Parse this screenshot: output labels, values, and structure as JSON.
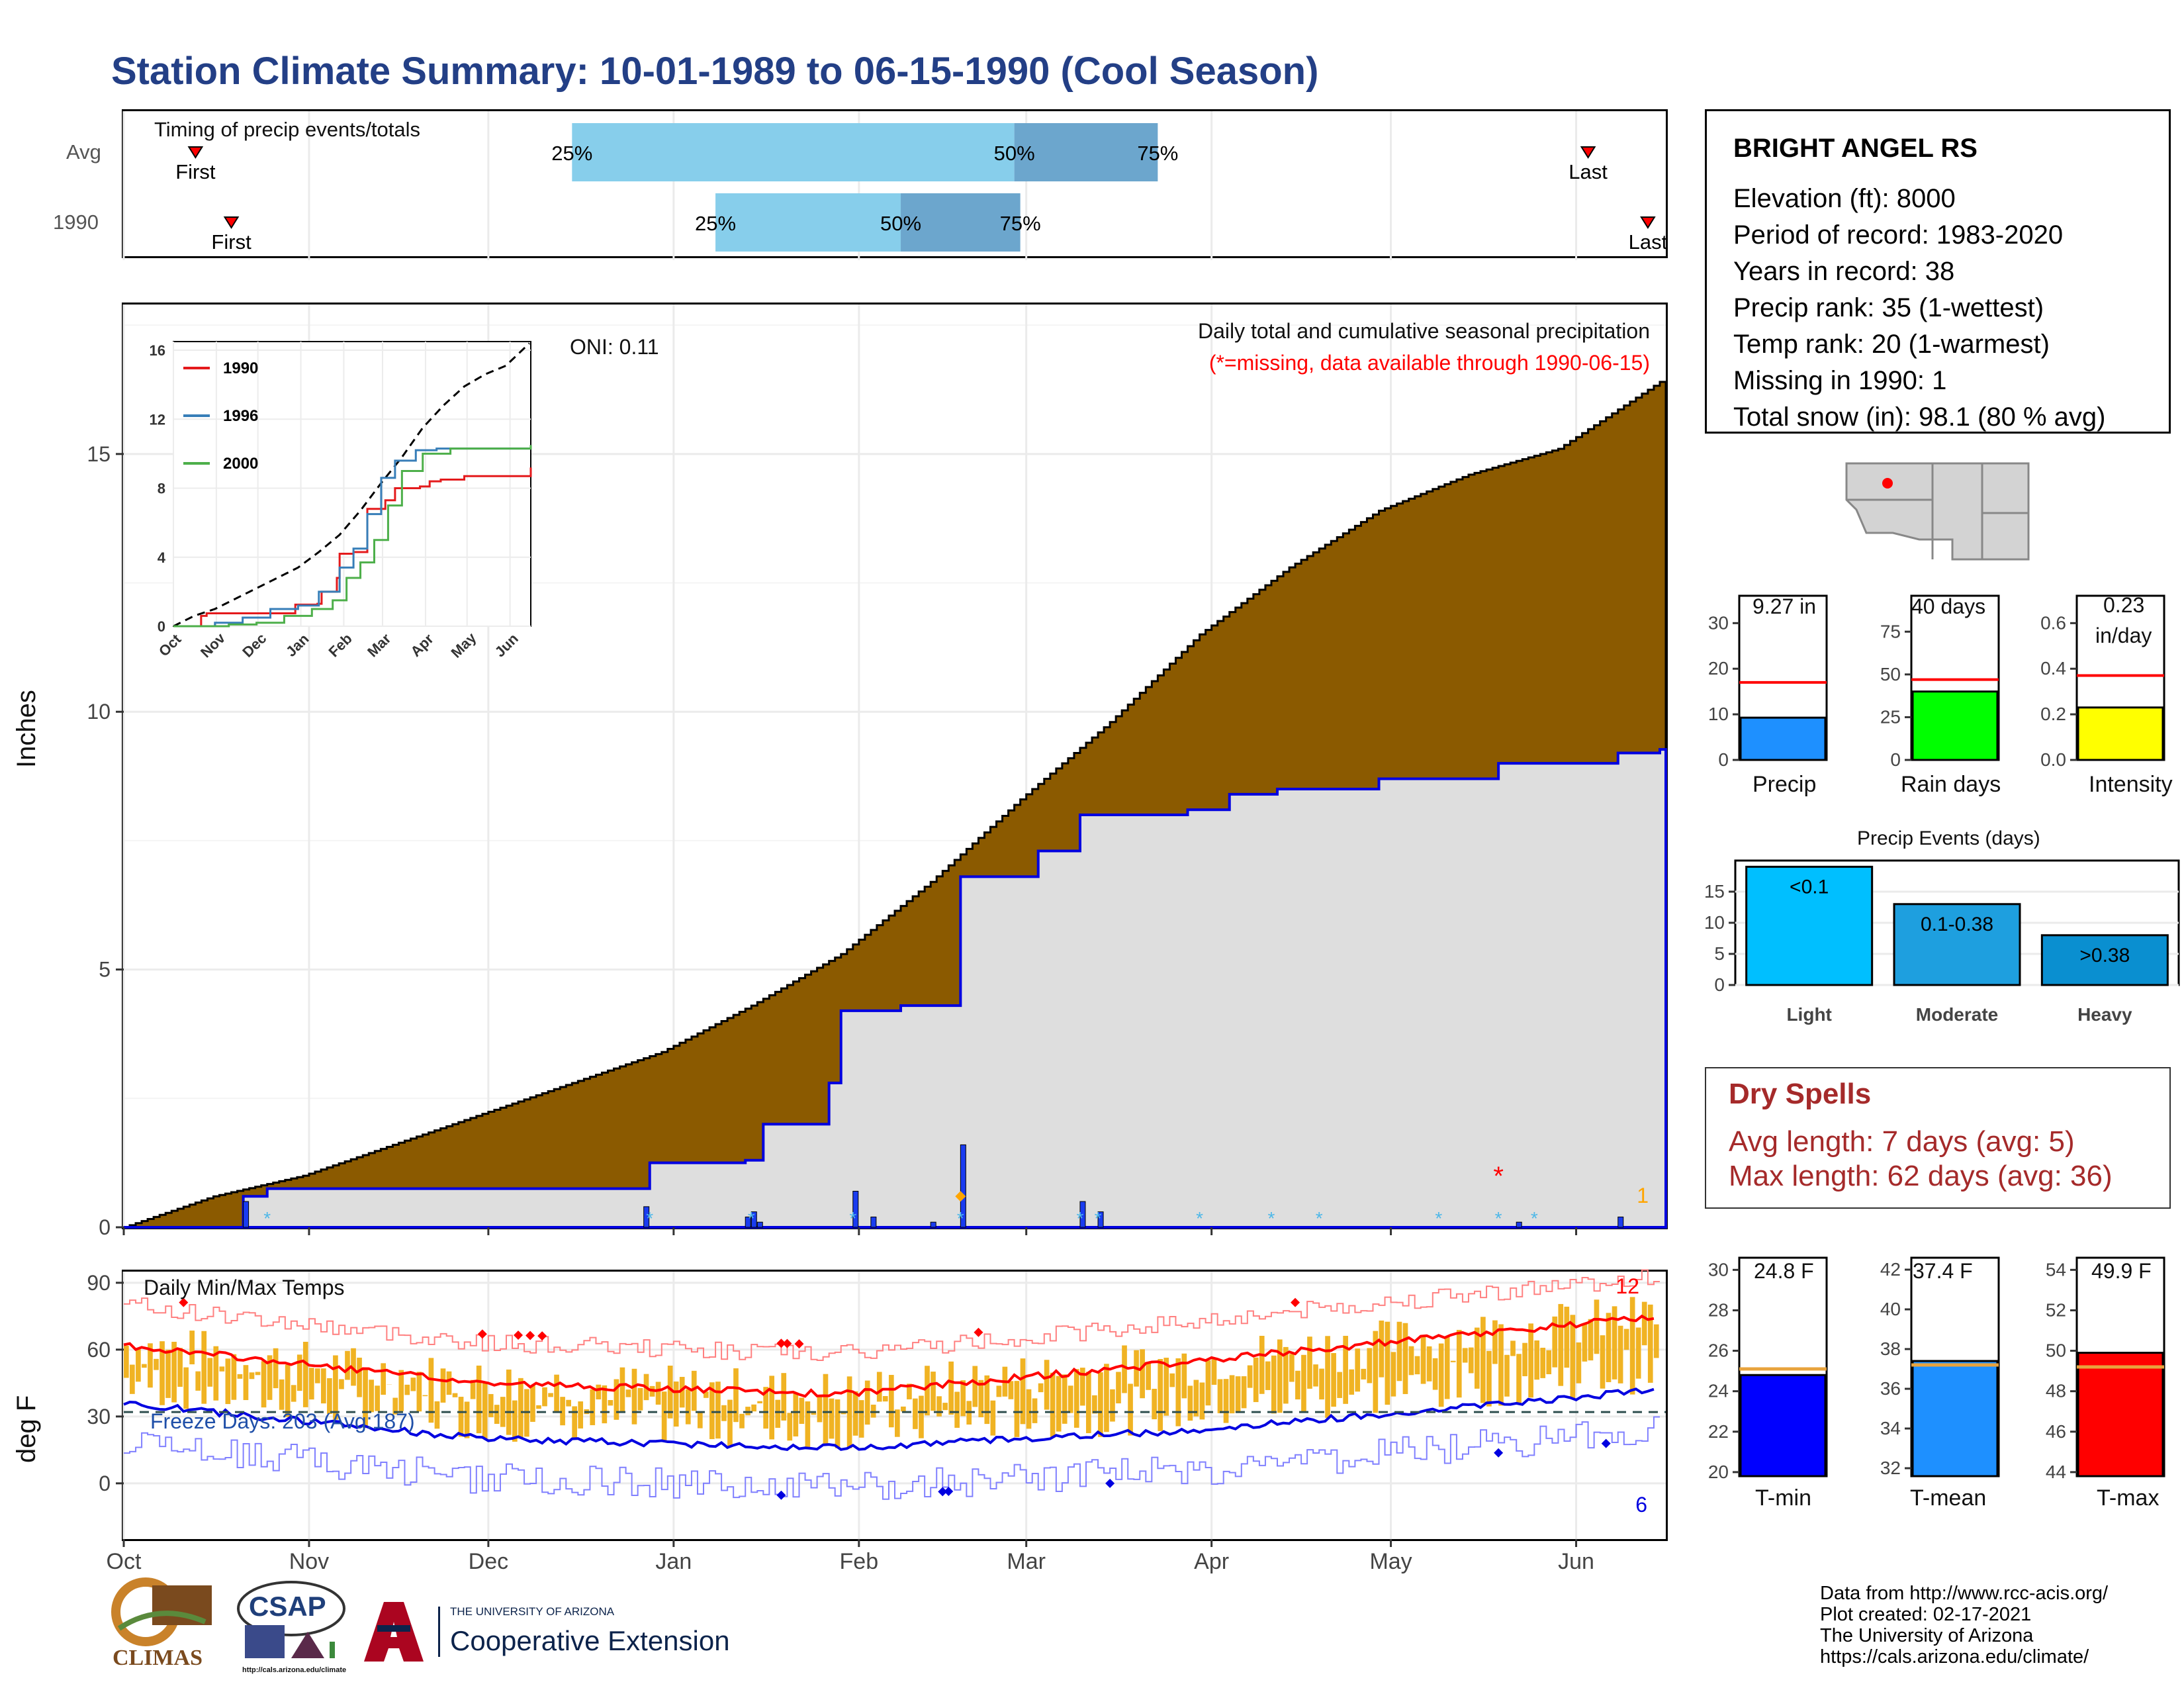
{
  "header": {
    "title": "Station Climate Summary: 10-01-1989 to 06-15-1990 (Cool Season)"
  },
  "timing": {
    "label": "Timing of precip events/totals",
    "rows": [
      {
        "name": "Avg",
        "first_label": "First",
        "last_label": "Last",
        "q25": "25%",
        "q50": "50%",
        "q75": "75%"
      },
      {
        "name": "1990",
        "first_label": "First",
        "last_label": "Last",
        "q25": "25%",
        "q50": "50%",
        "q75": "75%"
      }
    ]
  },
  "station": {
    "name": "BRIGHT ANGEL RS",
    "elevation": "Elevation (ft): 8000",
    "period": "Period of record: 1983-2020",
    "years": "Years in record: 38",
    "precip_rank": "Precip rank: 35 (1-wettest)",
    "temp_rank": "Temp rank: 20 (1-warmest)",
    "missing": "Missing in 1990: 1",
    "snow": "Total snow (in): 98.1 (80 % avg)"
  },
  "main": {
    "ylabel": "Inches",
    "oni": "ONI: 0.11",
    "legend_line1": "Daily total and cumulative seasonal precipitation",
    "legend_line2": "(*=missing, data available through 1990-06-15)",
    "count_label": "1",
    "colors": {
      "cum_avg_fill": "#8b5a00",
      "cum_year_fill": "#dedede",
      "year_line": "#0000e0",
      "bars": "#1a3cf0"
    }
  },
  "inset": {
    "legend": [
      "1990",
      "1996",
      "2000"
    ],
    "colors": [
      "#e41a1c",
      "#377eb8",
      "#4daf4a"
    ]
  },
  "temps": {
    "label": "Daily Min/Max Temps",
    "ylabel": "deg F",
    "freeze": "Freeze Days: 203 (Avg:187)",
    "top_count": "12",
    "bottom_count": "6"
  },
  "month_labels": [
    "Oct",
    "Nov",
    "Dec",
    "Jan",
    "Feb",
    "Mar",
    "Apr",
    "May",
    "Jun"
  ],
  "bars_small": {
    "precip": {
      "value_label": "9.27 in",
      "name": "Precip"
    },
    "raindays": {
      "value_label": "40 days",
      "name": "Rain days"
    },
    "intensity": {
      "value_label_1": "0.23",
      "value_label_2": "in/day",
      "name": "Intensity"
    }
  },
  "events": {
    "title": "Precip Events (days)",
    "categories": [
      "Light",
      "Moderate",
      "Heavy"
    ],
    "bar_labels": [
      "<0.1",
      "0.1-0.38",
      ">0.38"
    ]
  },
  "dry_spells": {
    "title": "Dry Spells",
    "avg_length": "Avg length: 7 days (avg: 5)",
    "max_length": "Max length: 62 days (avg: 36)"
  },
  "temp_bars": {
    "tmin": {
      "label": "24.8 F",
      "name": "T-min"
    },
    "tmean": {
      "label": "37.4 F",
      "name": "T-mean"
    },
    "tmax": {
      "label": "49.9 F",
      "name": "T-max"
    }
  },
  "logos": {
    "climas": "CLIMAS",
    "csap": "CSAP",
    "csap_url": "http://cals.arizona.edu/climate",
    "ua_line1": "THE UNIVERSITY OF ARIZONA",
    "ua_line2": "Cooperative Extension"
  },
  "credits": {
    "line1": "Data from http://www.rcc-acis.org/",
    "line2": "Plot created: 02-17-2021",
    "line3": "The University of Arizona",
    "line4": "https://cals.arizona.edu/climate/"
  },
  "chart_data": [
    {
      "type": "area",
      "title": "Daily total and cumulative seasonal precipitation",
      "ylabel": "Inches",
      "ylim": [
        0,
        17.9
      ],
      "x_ticks": [
        "Oct",
        "Nov",
        "Dec",
        "Jan",
        "Feb",
        "Mar",
        "Apr",
        "May",
        "Jun"
      ],
      "series": [
        {
          "name": "Average cumulative",
          "x_day": [
            0,
            15,
            30,
            45,
            60,
            75,
            90,
            105,
            120,
            135,
            150,
            165,
            180,
            195,
            210,
            225,
            240,
            257
          ],
          "values": [
            0,
            0.6,
            1.0,
            1.6,
            2.2,
            2.8,
            3.4,
            4.3,
            5.3,
            6.7,
            8.3,
            9.8,
            11.5,
            12.8,
            13.9,
            14.6,
            15.1,
            16.4
          ]
        },
        {
          "name": "1990 cumulative",
          "x_day": [
            0,
            20,
            24,
            87,
            88,
            104,
            107,
            118,
            120,
            130,
            140,
            153,
            160,
            178,
            185,
            193,
            210,
            230,
            250,
            257
          ],
          "values": [
            0,
            0.6,
            0.75,
            0.75,
            1.25,
            1.3,
            2.0,
            2.8,
            4.2,
            4.3,
            6.8,
            7.3,
            8.0,
            8.1,
            8.4,
            8.5,
            8.7,
            9.0,
            9.2,
            9.27
          ]
        }
      ],
      "daily_bars": {
        "x_day": [
          20,
          87,
          104,
          105,
          106,
          122,
          125,
          135,
          140,
          160,
          163,
          233,
          250
        ],
        "values": [
          0.5,
          0.4,
          0.2,
          0.3,
          0.1,
          0.7,
          0.2,
          0.1,
          1.6,
          0.5,
          0.3,
          0.1,
          0.2
        ]
      }
    },
    {
      "type": "line",
      "title": "Daily Min/Max Temps",
      "ylabel": "deg F",
      "ylim": [
        -25,
        95
      ],
      "series": [
        {
          "name": "Normal max",
          "x_day": [
            0,
            60,
            120,
            180,
            257
          ],
          "values": [
            62,
            45,
            40,
            55,
            75
          ]
        },
        {
          "name": "Normal min",
          "x_day": [
            0,
            60,
            120,
            180,
            257
          ],
          "values": [
            36,
            20,
            16,
            24,
            42
          ]
        }
      ]
    },
    {
      "type": "bar",
      "categories": [
        "Light",
        "Moderate",
        "Heavy"
      ],
      "values": [
        19,
        13,
        8
      ],
      "xlabel": "Precip Events (days)",
      "ylim": [
        0,
        20
      ]
    },
    {
      "type": "bar",
      "categories": [
        "Precip",
        "Rain days",
        "Intensity"
      ],
      "values": [
        9.27,
        40,
        0.23
      ],
      "averages": [
        17,
        47,
        0.37
      ]
    },
    {
      "type": "bar",
      "categories": [
        "T-min",
        "T-mean",
        "T-max"
      ],
      "values": [
        24.8,
        37.4,
        49.9
      ],
      "averages": [
        25.1,
        37.2,
        49.2
      ]
    }
  ]
}
